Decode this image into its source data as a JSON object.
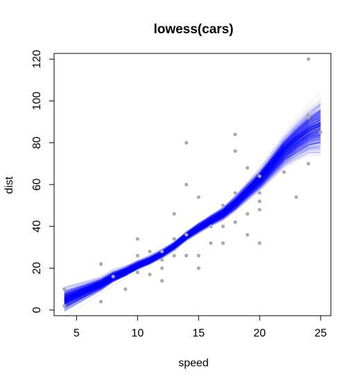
{
  "chart_data": {
    "type": "scatter",
    "title": "lowess(cars)",
    "xlabel": "speed",
    "ylabel": "dist",
    "xlim": [
      3.16,
      25.84
    ],
    "ylim": [
      -2.72,
      122.72
    ],
    "xticks": [
      5,
      10,
      15,
      20,
      25
    ],
    "yticks": [
      0,
      20,
      40,
      60,
      80,
      100,
      120
    ],
    "grid": false,
    "legend": "none",
    "colors": {
      "points": "#aaaaaa",
      "bootstrap_lines": "#0000ff",
      "axis": "#000000"
    },
    "points": [
      [
        4,
        2
      ],
      [
        4,
        10
      ],
      [
        7,
        4
      ],
      [
        7,
        22
      ],
      [
        8,
        16
      ],
      [
        9,
        10
      ],
      [
        10,
        18
      ],
      [
        10,
        26
      ],
      [
        10,
        34
      ],
      [
        11,
        17
      ],
      [
        11,
        28
      ],
      [
        12,
        14
      ],
      [
        12,
        20
      ],
      [
        12,
        24
      ],
      [
        12,
        28
      ],
      [
        13,
        26
      ],
      [
        13,
        34
      ],
      [
        13,
        34
      ],
      [
        13,
        46
      ],
      [
        14,
        26
      ],
      [
        14,
        36
      ],
      [
        14,
        60
      ],
      [
        14,
        80
      ],
      [
        15,
        20
      ],
      [
        15,
        26
      ],
      [
        15,
        54
      ],
      [
        16,
        32
      ],
      [
        16,
        40
      ],
      [
        17,
        32
      ],
      [
        17,
        40
      ],
      [
        17,
        50
      ],
      [
        18,
        42
      ],
      [
        18,
        56
      ],
      [
        18,
        76
      ],
      [
        18,
        84
      ],
      [
        19,
        36
      ],
      [
        19,
        46
      ],
      [
        19,
        68
      ],
      [
        20,
        32
      ],
      [
        20,
        48
      ],
      [
        20,
        52
      ],
      [
        20,
        56
      ],
      [
        20,
        64
      ],
      [
        22,
        66
      ],
      [
        23,
        54
      ],
      [
        24,
        70
      ],
      [
        24,
        92
      ],
      [
        24,
        93
      ],
      [
        24,
        120
      ],
      [
        25,
        85
      ]
    ],
    "lowess_fit": {
      "x": [
        4,
        7,
        8,
        9,
        10,
        11,
        12,
        13,
        14,
        15,
        16,
        17,
        18,
        19,
        20,
        22,
        23,
        24,
        25
      ],
      "y": [
        4.97,
        12.43,
        15.97,
        18.35,
        21.32,
        23.83,
        26.91,
        30.62,
        35.36,
        39.27,
        42.79,
        46.23,
        51.12,
        56.87,
        62.43,
        75.97,
        81.14,
        85.56,
        88.09
      ]
    },
    "bootstrap_lines": 500
  }
}
